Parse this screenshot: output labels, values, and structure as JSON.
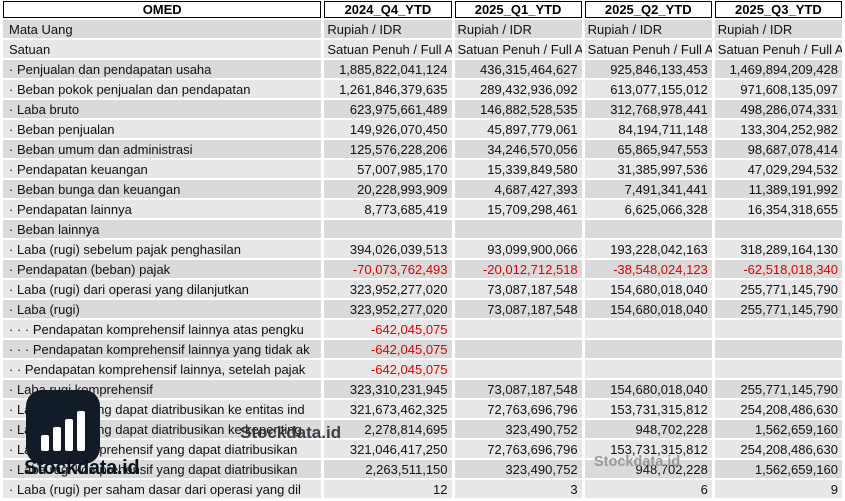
{
  "table": {
    "headers": [
      "OMED",
      "2024_Q4_YTD",
      "2025_Q1_YTD",
      "2025_Q2_YTD",
      "2025_Q3_YTD"
    ],
    "rows": [
      {
        "label": "Mata Uang",
        "align": "left",
        "values": [
          "Rupiah / IDR",
          "Rupiah / IDR",
          "Rupiah / IDR",
          "Rupiah / IDR"
        ]
      },
      {
        "label": "Satuan",
        "align": "left",
        "values": [
          "Satuan Penuh / Full A",
          "Satuan Penuh / Full A",
          "Satuan Penuh / Full A",
          "Satuan Penuh / Full A"
        ]
      },
      {
        "label": "· Penjualan dan pendapatan usaha",
        "values": [
          "1,885,822,041,124",
          "436,315,464,627",
          "925,846,133,453",
          "1,469,894,209,428"
        ]
      },
      {
        "label": "· Beban pokok penjualan dan pendapatan",
        "values": [
          "1,261,846,379,635",
          "289,432,936,092",
          "613,077,155,012",
          "971,608,135,097"
        ]
      },
      {
        "label": "· Laba bruto",
        "values": [
          "623,975,661,489",
          "146,882,528,535",
          "312,768,978,441",
          "498,286,074,331"
        ]
      },
      {
        "label": "· Beban penjualan",
        "values": [
          "149,926,070,450",
          "45,897,779,061",
          "84,194,711,148",
          "133,304,252,982"
        ]
      },
      {
        "label": "· Beban umum dan administrasi",
        "values": [
          "125,576,228,206",
          "34,246,570,056",
          "65,865,947,553",
          "98,687,078,414"
        ]
      },
      {
        "label": "· Pendapatan keuangan",
        "values": [
          "57,007,985,170",
          "15,339,849,580",
          "31,385,997,536",
          "47,029,294,532"
        ]
      },
      {
        "label": "· Beban bunga dan keuangan",
        "values": [
          "20,228,993,909",
          "4,687,427,393",
          "7,491,341,441",
          "11,389,191,992"
        ]
      },
      {
        "label": "· Pendapatan lainnya",
        "values": [
          "8,773,685,419",
          "15,709,298,461",
          "6,625,066,328",
          "16,354,318,655"
        ]
      },
      {
        "label": "· Beban lainnya",
        "values": [
          "",
          "",
          "",
          ""
        ]
      },
      {
        "label": "· Laba (rugi) sebelum pajak penghasilan",
        "values": [
          "394,026,039,513",
          "93,099,900,066",
          "193,228,042,163",
          "318,289,164,130"
        ]
      },
      {
        "label": "· Pendapatan (beban) pajak",
        "values": [
          "-70,073,762,493",
          "-20,012,712,518",
          "-38,548,024,123",
          "-62,518,018,340"
        ]
      },
      {
        "label": "· Laba (rugi) dari operasi yang dilanjutkan",
        "values": [
          "323,952,277,020",
          "73,087,187,548",
          "154,680,018,040",
          "255,771,145,790"
        ]
      },
      {
        "label": "· Laba (rugi)",
        "values": [
          "323,952,277,020",
          "73,087,187,548",
          "154,680,018,040",
          "255,771,145,790"
        ]
      },
      {
        "label": "· · · Pendapatan komprehensif lainnya atas pengku",
        "values": [
          "-642,045,075",
          "",
          "",
          ""
        ]
      },
      {
        "label": "· · · Pendapatan komprehensif lainnya yang tidak ak",
        "values": [
          "-642,045,075",
          "",
          "",
          ""
        ]
      },
      {
        "label": "· · Pendapatan komprehensif lainnya, setelah pajak",
        "values": [
          "-642,045,075",
          "",
          "",
          ""
        ]
      },
      {
        "label": "· Laba rugi komprehensif",
        "values": [
          "323,310,231,945",
          "73,087,187,548",
          "154,680,018,040",
          "255,771,145,790"
        ]
      },
      {
        "label": "· Laba (rugi) yang dapat diatribusikan ke entitas ind",
        "values": [
          "321,673,462,325",
          "72,763,696,796",
          "153,731,315,812",
          "254,208,486,630"
        ]
      },
      {
        "label": "· Laba (rugi) yang dapat diatribusikan ke kepenting",
        "values": [
          "2,278,814,695",
          "323,490,752",
          "948,702,228",
          "1,562,659,160"
        ]
      },
      {
        "label": "· Laba rugi komprehensif yang dapat diatribusikan",
        "values": [
          "321,046,417,250",
          "72,763,696,796",
          "153,731,315,812",
          "254,208,486,630"
        ]
      },
      {
        "label": "· Laba rugi komprehensif yang dapat diatribusikan",
        "values": [
          "2,263,511,150",
          "323,490,752",
          "948,702,228",
          "1,562,659,160"
        ]
      },
      {
        "label": "· Laba (rugi) per saham dasar dari operasi yang dil",
        "values": [
          "12",
          "3",
          "6",
          "9"
        ]
      }
    ]
  },
  "watermarks": {
    "logo_text": "Stockdata.id",
    "mid_text": "Stockdata.id",
    "small_text": "Stockdata.id"
  },
  "colors": {
    "negative_value": "#dd0000",
    "row_shade_dark": "#dadada",
    "row_shade_light": "#e7e7e7",
    "logo_background": "#111c28"
  }
}
